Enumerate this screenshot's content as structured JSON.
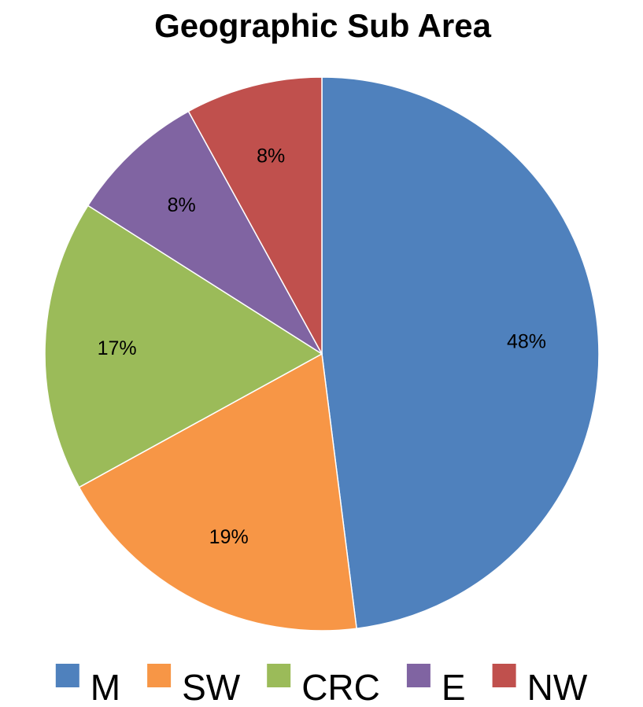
{
  "chart_data": {
    "type": "pie",
    "title": "Geographic Sub Area",
    "categories": [
      "M",
      "SW",
      "CRC",
      "E",
      "NW"
    ],
    "values": [
      48,
      19,
      17,
      8,
      8
    ],
    "labels": [
      "48%",
      "19%",
      "17%",
      "8%",
      "8%"
    ],
    "colors": [
      "#4F81BD",
      "#F79646",
      "#9BBB59",
      "#8064A2",
      "#C0504D"
    ],
    "start_angle": "12 o'clock",
    "direction": "clockwise",
    "legend_position": "bottom"
  }
}
